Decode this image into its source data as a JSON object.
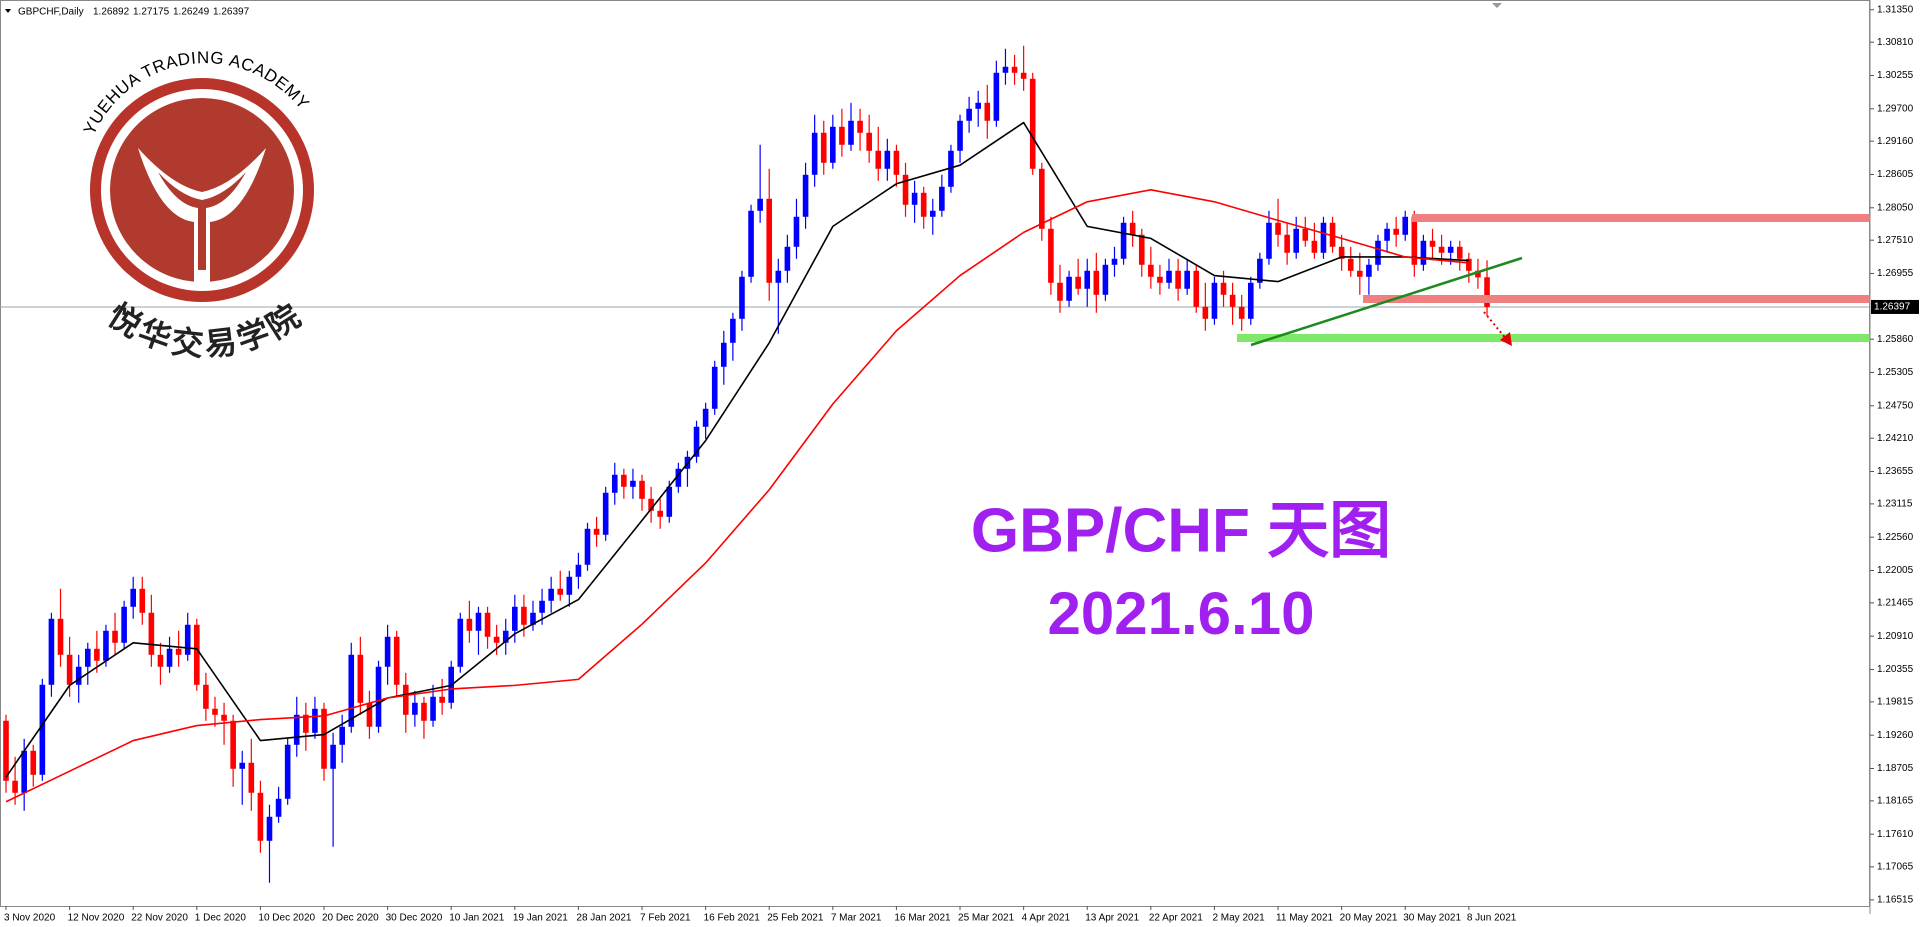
{
  "chart_data": {
    "type": "candlestick",
    "title": "GBPCHF,Daily",
    "up_color": "#0000ff",
    "down_color": "#ff0000",
    "ylim": [
      1.16413,
      1.31513
    ],
    "yticks": [
      {
        "value": 1.3135,
        "label": "1.31350"
      },
      {
        "value": 1.3081,
        "label": "1.30810"
      },
      1.30255,
      {
        "value": 1.297,
        "label": "1.29700"
      },
      {
        "value": 1.2916,
        "label": "1.29160"
      },
      1.28605,
      {
        "value": 1.2805,
        "label": "1.28050"
      },
      {
        "value": 1.2751,
        "label": "1.27510"
      },
      1.26955,
      {
        "value": 1.2586,
        "label": "1.25860"
      },
      1.25305,
      {
        "value": 1.2475,
        "label": "1.24750"
      },
      {
        "value": 1.2421,
        "label": "1.24210"
      },
      1.23655,
      1.23115,
      {
        "value": 1.2256,
        "label": "1.22560"
      },
      1.22005,
      1.21465,
      {
        "value": 1.2091,
        "label": "1.20910"
      },
      1.20355,
      1.19815,
      {
        "value": 1.1926,
        "label": "1.19260"
      },
      1.18705,
      1.18165,
      {
        "value": 1.1761,
        "label": "1.17610"
      },
      1.17065,
      1.16515
    ],
    "categories": [
      "3 Nov 2020",
      null,
      null,
      null,
      null,
      null,
      null,
      "12 Nov 2020",
      null,
      null,
      null,
      null,
      null,
      null,
      "22 Nov 2020",
      null,
      null,
      null,
      null,
      null,
      null,
      "1 Dec 2020",
      null,
      null,
      null,
      null,
      null,
      null,
      "10 Dec 2020",
      null,
      null,
      null,
      null,
      null,
      null,
      "20 Dec 2020",
      null,
      null,
      null,
      null,
      null,
      null,
      "30 Dec 2020",
      null,
      null,
      null,
      null,
      null,
      null,
      "10 Jan 2021",
      null,
      null,
      null,
      null,
      null,
      null,
      "19 Jan 2021",
      null,
      null,
      null,
      null,
      null,
      null,
      "28 Jan 2021",
      null,
      null,
      null,
      null,
      null,
      null,
      "7 Feb 2021",
      null,
      null,
      null,
      null,
      null,
      null,
      "16 Feb 2021",
      null,
      null,
      null,
      null,
      null,
      null,
      "25 Feb 2021",
      null,
      null,
      null,
      null,
      null,
      null,
      "7 Mar 2021",
      null,
      null,
      null,
      null,
      null,
      null,
      "16 Mar 2021",
      null,
      null,
      null,
      null,
      null,
      null,
      "25 Mar 2021",
      null,
      null,
      null,
      null,
      null,
      null,
      "4 Apr 2021",
      null,
      null,
      null,
      null,
      null,
      null,
      "13 Apr 2021",
      null,
      null,
      null,
      null,
      null,
      null,
      "22 Apr 2021",
      null,
      null,
      null,
      null,
      null,
      null,
      "2 May 2021",
      null,
      null,
      null,
      null,
      null,
      null,
      "11 May 2021",
      null,
      null,
      null,
      null,
      null,
      null,
      "20 May 2021",
      null,
      null,
      null,
      null,
      null,
      null,
      "30 May 2021",
      null,
      null,
      null,
      null,
      null,
      null,
      "8 Jun 2021",
      null,
      null
    ],
    "candles": [
      [
        1.195,
        1.196,
        1.183,
        1.185
      ],
      [
        1.185,
        1.189,
        1.181,
        1.183
      ],
      [
        1.183,
        1.192,
        1.18,
        1.19
      ],
      [
        1.19,
        1.191,
        1.184,
        1.186
      ],
      [
        1.186,
        1.202,
        1.185,
        1.201
      ],
      [
        1.201,
        1.213,
        1.199,
        1.212
      ],
      [
        1.212,
        1.217,
        1.204,
        1.206
      ],
      [
        1.206,
        1.209,
        1.199,
        1.201
      ],
      [
        1.201,
        1.206,
        1.198,
        1.204
      ],
      [
        1.204,
        1.208,
        1.201,
        1.207
      ],
      [
        1.207,
        1.21,
        1.203,
        1.205
      ],
      [
        1.205,
        1.211,
        1.204,
        1.21
      ],
      [
        1.21,
        1.213,
        1.206,
        1.208
      ],
      [
        1.208,
        1.215,
        1.207,
        1.214
      ],
      [
        1.214,
        1.219,
        1.212,
        1.217
      ],
      [
        1.217,
        1.219,
        1.211,
        1.213
      ],
      [
        1.213,
        1.216,
        1.204,
        1.206
      ],
      [
        1.206,
        1.208,
        1.201,
        1.204
      ],
      [
        1.204,
        1.209,
        1.203,
        1.207
      ],
      [
        1.207,
        1.21,
        1.204,
        1.206
      ],
      [
        1.206,
        1.213,
        1.205,
        1.211
      ],
      [
        1.211,
        1.212,
        1.2,
        1.201
      ],
      [
        1.201,
        1.203,
        1.195,
        1.197
      ],
      [
        1.197,
        1.199,
        1.194,
        1.196
      ],
      [
        1.196,
        1.198,
        1.191,
        1.195
      ],
      [
        1.195,
        1.196,
        1.184,
        1.187
      ],
      [
        1.187,
        1.19,
        1.181,
        1.188
      ],
      [
        1.188,
        1.192,
        1.18,
        1.183
      ],
      [
        1.183,
        1.185,
        1.173,
        1.175
      ],
      [
        1.175,
        1.181,
        1.168,
        1.179
      ],
      [
        1.179,
        1.184,
        1.178,
        1.182
      ],
      [
        1.182,
        1.192,
        1.181,
        1.191
      ],
      [
        1.191,
        1.199,
        1.189,
        1.196
      ],
      [
        1.196,
        1.198,
        1.19,
        1.193
      ],
      [
        1.193,
        1.199,
        1.192,
        1.197
      ],
      [
        1.197,
        1.198,
        1.185,
        1.187
      ],
      [
        1.187,
        1.193,
        1.174,
        1.191
      ],
      [
        1.191,
        1.196,
        1.188,
        1.194
      ],
      [
        1.194,
        1.208,
        1.193,
        1.206
      ],
      [
        1.206,
        1.209,
        1.196,
        1.198
      ],
      [
        1.198,
        1.2,
        1.192,
        1.194
      ],
      [
        1.194,
        1.205,
        1.193,
        1.204
      ],
      [
        1.204,
        1.211,
        1.201,
        1.209
      ],
      [
        1.209,
        1.21,
        1.199,
        1.201
      ],
      [
        1.201,
        1.203,
        1.193,
        1.196
      ],
      [
        1.196,
        1.2,
        1.194,
        1.198
      ],
      [
        1.198,
        1.199,
        1.192,
        1.195
      ],
      [
        1.195,
        1.201,
        1.194,
        1.199
      ],
      [
        1.199,
        1.202,
        1.196,
        1.198
      ],
      [
        1.198,
        1.205,
        1.197,
        1.204
      ],
      [
        1.204,
        1.213,
        1.203,
        1.212
      ],
      [
        1.212,
        1.215,
        1.208,
        1.21
      ],
      [
        1.21,
        1.214,
        1.206,
        1.213
      ],
      [
        1.213,
        1.214,
        1.207,
        1.209
      ],
      [
        1.209,
        1.211,
        1.206,
        1.208
      ],
      [
        1.208,
        1.212,
        1.206,
        1.21
      ],
      [
        1.21,
        1.216,
        1.208,
        1.214
      ],
      [
        1.214,
        1.216,
        1.209,
        1.211
      ],
      [
        1.211,
        1.215,
        1.21,
        1.213
      ],
      [
        1.213,
        1.217,
        1.211,
        1.215
      ],
      [
        1.215,
        1.219,
        1.213,
        1.217
      ],
      [
        1.217,
        1.22,
        1.215,
        1.216
      ],
      [
        1.216,
        1.22,
        1.214,
        1.219
      ],
      [
        1.219,
        1.223,
        1.217,
        1.221
      ],
      [
        1.221,
        1.228,
        1.22,
        1.227
      ],
      [
        1.227,
        1.229,
        1.224,
        1.226
      ],
      [
        1.226,
        1.234,
        1.225,
        1.233
      ],
      [
        1.233,
        1.238,
        1.231,
        1.236
      ],
      [
        1.236,
        1.237,
        1.232,
        1.234
      ],
      [
        1.234,
        1.237,
        1.232,
        1.235
      ],
      [
        1.235,
        1.236,
        1.23,
        1.232
      ],
      [
        1.232,
        1.234,
        1.228,
        1.23
      ],
      [
        1.23,
        1.232,
        1.227,
        1.229
      ],
      [
        1.229,
        1.235,
        1.228,
        1.234
      ],
      [
        1.234,
        1.238,
        1.233,
        1.237
      ],
      [
        1.237,
        1.24,
        1.234,
        1.239
      ],
      [
        1.239,
        1.245,
        1.238,
        1.244
      ],
      [
        1.244,
        1.248,
        1.242,
        1.247
      ],
      [
        1.247,
        1.255,
        1.246,
        1.254
      ],
      [
        1.254,
        1.26,
        1.251,
        1.258
      ],
      [
        1.258,
        1.263,
        1.255,
        1.262
      ],
      [
        1.262,
        1.27,
        1.26,
        1.269
      ],
      [
        1.269,
        1.281,
        1.268,
        1.28
      ],
      [
        1.28,
        1.291,
        1.278,
        1.282
      ],
      [
        1.282,
        1.287,
        1.265,
        1.268
      ],
      [
        1.268,
        1.272,
        1.2595,
        1.27
      ],
      [
        1.27,
        1.276,
        1.268,
        1.274
      ],
      [
        1.274,
        1.282,
        1.272,
        1.279
      ],
      [
        1.279,
        1.288,
        1.277,
        1.286
      ],
      [
        1.286,
        1.296,
        1.284,
        1.293
      ],
      [
        1.293,
        1.295,
        1.286,
        1.288
      ],
      [
        1.288,
        1.296,
        1.287,
        1.294
      ],
      [
        1.294,
        1.297,
        1.289,
        1.291
      ],
      [
        1.291,
        1.298,
        1.29,
        1.295
      ],
      [
        1.295,
        1.297,
        1.29,
        1.293
      ],
      [
        1.293,
        1.296,
        1.288,
        1.29
      ],
      [
        1.29,
        1.294,
        1.285,
        1.287
      ],
      [
        1.287,
        1.292,
        1.285,
        1.29
      ],
      [
        1.29,
        1.291,
        1.284,
        1.286
      ],
      [
        1.286,
        1.288,
        1.279,
        1.281
      ],
      [
        1.281,
        1.285,
        1.278,
        1.283
      ],
      [
        1.283,
        1.284,
        1.277,
        1.279
      ],
      [
        1.279,
        1.282,
        1.276,
        1.28
      ],
      [
        1.28,
        1.286,
        1.279,
        1.284
      ],
      [
        1.284,
        1.291,
        1.283,
        1.29
      ],
      [
        1.29,
        1.296,
        1.288,
        1.295
      ],
      [
        1.295,
        1.299,
        1.293,
        1.297
      ],
      [
        1.297,
        1.3,
        1.294,
        1.298
      ],
      [
        1.298,
        1.301,
        1.292,
        1.295
      ],
      [
        1.295,
        1.305,
        1.294,
        1.303
      ],
      [
        1.303,
        1.307,
        1.301,
        1.304
      ],
      [
        1.304,
        1.306,
        1.301,
        1.303
      ],
      [
        1.303,
        1.3075,
        1.3,
        1.302
      ],
      [
        1.302,
        1.303,
        1.286,
        1.287
      ],
      [
        1.287,
        1.288,
        1.275,
        1.277
      ],
      [
        1.277,
        1.279,
        1.266,
        1.268
      ],
      [
        1.268,
        1.271,
        1.263,
        1.265
      ],
      [
        1.265,
        1.27,
        1.264,
        1.269
      ],
      [
        1.269,
        1.272,
        1.266,
        1.267
      ],
      [
        1.267,
        1.272,
        1.264,
        1.27
      ],
      [
        1.27,
        1.273,
        1.263,
        1.266
      ],
      [
        1.266,
        1.272,
        1.265,
        1.271
      ],
      [
        1.271,
        1.274,
        1.269,
        1.272
      ],
      [
        1.272,
        1.279,
        1.271,
        1.278
      ],
      [
        1.278,
        1.28,
        1.274,
        1.276
      ],
      [
        1.276,
        1.277,
        1.269,
        1.271
      ],
      [
        1.271,
        1.274,
        1.267,
        1.269
      ],
      [
        1.269,
        1.271,
        1.266,
        1.268
      ],
      [
        1.268,
        1.272,
        1.267,
        1.27
      ],
      [
        1.27,
        1.272,
        1.265,
        1.267
      ],
      [
        1.267,
        1.272,
        1.266,
        1.27
      ],
      [
        1.27,
        1.271,
        1.263,
        1.264
      ],
      [
        1.264,
        1.268,
        1.26,
        1.262
      ],
      [
        1.262,
        1.269,
        1.261,
        1.268
      ],
      [
        1.268,
        1.27,
        1.264,
        1.266
      ],
      [
        1.266,
        1.268,
        1.261,
        1.264
      ],
      [
        1.264,
        1.266,
        1.26,
        1.262
      ],
      [
        1.262,
        1.269,
        1.261,
        1.268
      ],
      [
        1.268,
        1.273,
        1.267,
        1.272
      ],
      [
        1.272,
        1.28,
        1.271,
        1.278
      ],
      [
        1.278,
        1.282,
        1.274,
        1.276
      ],
      [
        1.276,
        1.278,
        1.271,
        1.273
      ],
      [
        1.273,
        1.279,
        1.272,
        1.277
      ],
      [
        1.277,
        1.279,
        1.274,
        1.275
      ],
      [
        1.275,
        1.278,
        1.272,
        1.273
      ],
      [
        1.273,
        1.279,
        1.272,
        1.278
      ],
      [
        1.278,
        1.279,
        1.273,
        1.274
      ],
      [
        1.274,
        1.276,
        1.27,
        1.272
      ],
      [
        1.272,
        1.274,
        1.269,
        1.27
      ],
      [
        1.27,
        1.273,
        1.266,
        1.269
      ],
      [
        1.269,
        1.272,
        1.266,
        1.271
      ],
      [
        1.271,
        1.276,
        1.27,
        1.275
      ],
      [
        1.275,
        1.278,
        1.273,
        1.277
      ],
      [
        1.277,
        1.279,
        1.274,
        1.276
      ],
      [
        1.276,
        1.28,
        1.275,
        1.279
      ],
      [
        1.279,
        1.28,
        1.269,
        1.271
      ],
      [
        1.271,
        1.276,
        1.27,
        1.275
      ],
      [
        1.275,
        1.277,
        1.272,
        1.274
      ],
      [
        1.274,
        1.276,
        1.271,
        1.273
      ],
      [
        1.273,
        1.275,
        1.271,
        1.274
      ],
      [
        1.274,
        1.275,
        1.27,
        1.272
      ],
      [
        1.272,
        1.273,
        1.268,
        1.27
      ],
      [
        1.27,
        1.272,
        1.267,
        1.2689
      ],
      [
        1.26892,
        1.27175,
        1.26249,
        1.26397
      ]
    ],
    "moving_averages": [
      {
        "color": "#000000",
        "values": [
          1.1856,
          1.2009,
          1.208,
          1.207,
          1.1917,
          1.1927,
          1.1988,
          1.2009,
          1.2095,
          1.2152,
          1.2284,
          1.2417,
          1.258,
          1.2774,
          1.2845,
          1.2876,
          1.2947,
          1.2774,
          1.2754,
          1.2692,
          1.2682,
          1.2723,
          1.2723,
          1.2717
        ]
      },
      {
        "color": "#ff0000",
        "values": [
          1.1815,
          1.1866,
          1.1917,
          1.1942,
          1.1952,
          1.1958,
          1.1988,
          1.2003,
          1.2009,
          1.2019,
          1.2111,
          1.2213,
          1.2335,
          1.2478,
          1.26,
          1.2692,
          1.2764,
          1.2815,
          1.2835,
          1.2815,
          1.2784,
          1.2754,
          1.2723,
          1.2713
        ]
      }
    ],
    "annotations": [
      "GBP/CHF 天图",
      "2021.6.10"
    ],
    "logo": {
      "name_en": "YUEHUA TRADING ACADEMY",
      "name_cn": "悦华交易学院"
    }
  }
}
